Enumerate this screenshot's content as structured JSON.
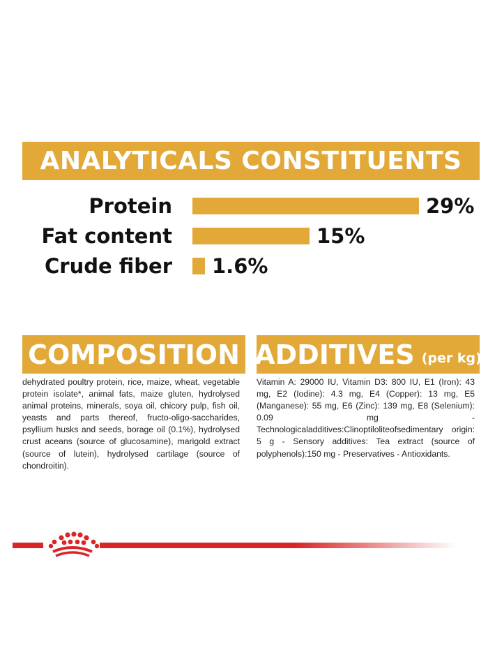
{
  "analytics": {
    "title": "ANALYTICALS CONSTITUENTS",
    "rows": [
      {
        "label": "Protein",
        "value": "29%",
        "fraction": 0.29
      },
      {
        "label": "Fat content",
        "value": "15%",
        "fraction": 0.15
      },
      {
        "label": "Crude fiber",
        "value": "1.6%",
        "fraction": 0.016
      }
    ]
  },
  "composition": {
    "title": "COMPOSITION",
    "text": "dehydrated poultry protein, rice, maize, wheat, vegetable protein isolate*, animal fats, maize gluten, hydrolysed animal proteins, minerals, soya oil, chicory pulp, fish oil, yeasts and parts thereof, fructo-oligo-saccharides, psyllium husks and seeds, borage oil (0.1%), hydrolysed crust aceans (source of glucosamine), marigold extract (source of lutein), hydrolysed cartilage (source of chondroitin)."
  },
  "additives": {
    "title": "ADDITIVES",
    "subtitle": "(per kg)",
    "text": "Vitamin A: 29000 IU, Vitamin D3: 800 IU, E1 (Iron): 43 mg, E2 (Iodine): 4.3 mg, E4 (Copper): 13 mg, E5 (Manganese): 55 mg, E6 (Zinc): 139 mg, E8 (Selenium): 0.09 mg - Technologicaladditives:Clinoptiloliteofsedimentary origin: 5 g - Sensory additives: Tea extract (source of polyphenols):150 mg - Preservatives - Antioxidants."
  },
  "footer": {
    "logo_icon": "royal-canin-crown-icon"
  },
  "colors": {
    "banner": "#E2A939",
    "brand_red": "#D82628",
    "text": "#111111"
  }
}
